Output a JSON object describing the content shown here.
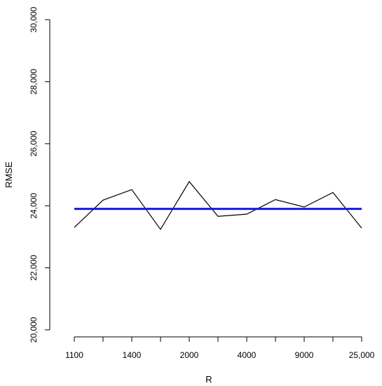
{
  "chart_data": {
    "type": "line",
    "xlabel": "R",
    "ylabel": "RMSE",
    "x_tick_labels": [
      "1100",
      "1400",
      "2000",
      "4000",
      "9000",
      "25,000"
    ],
    "x_tick_count": 11,
    "ylim": [
      20000,
      30000
    ],
    "y_ticks": [
      20000,
      22000,
      24000,
      26000,
      28000,
      30000
    ],
    "y_tick_labels": [
      "20,000",
      "22,000",
      "24,000",
      "26,000",
      "28,000",
      "30,000"
    ],
    "grid": false,
    "series": [
      {
        "color": "#000000",
        "values": [
          23300,
          24180,
          24520,
          23240,
          24780,
          23660,
          23730,
          24200,
          23960,
          24430,
          23280
        ]
      },
      {
        "color": "#1a1adb",
        "values": [
          23900,
          23900,
          23900,
          23900,
          23900,
          23900,
          23900,
          23900,
          23900,
          23900,
          23900
        ]
      }
    ]
  }
}
